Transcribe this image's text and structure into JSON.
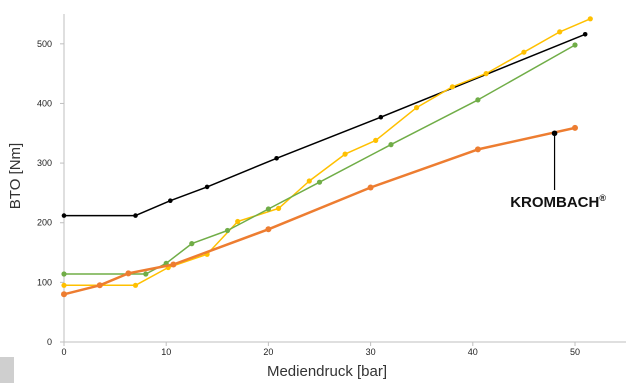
{
  "chart_data": {
    "type": "line",
    "title": "",
    "xlabel": "Mediendruck [bar]",
    "ylabel": "BTO [Nm]",
    "xlim": [
      0,
      55
    ],
    "ylim": [
      0,
      550
    ],
    "x_ticks": [
      "0",
      "10",
      "20",
      "30",
      "40",
      "50"
    ],
    "y_ticks": [
      "0",
      "100",
      "200",
      "300",
      "400",
      "500"
    ],
    "grid": false,
    "legend": "none",
    "annotations": [
      {
        "text": "KROMBACH",
        "superscript": "®",
        "target_series": 3,
        "x": 48,
        "y": 350
      }
    ],
    "series": [
      {
        "color": "#000000",
        "points": [
          [
            0,
            212
          ],
          [
            7,
            212
          ],
          [
            10.4,
            237
          ],
          [
            14,
            260
          ],
          [
            20.8,
            308
          ],
          [
            31,
            377
          ],
          [
            51,
            516
          ]
        ]
      },
      {
        "color": "#FFC000",
        "points": [
          [
            0,
            95
          ],
          [
            7,
            95
          ],
          [
            10.2,
            125
          ],
          [
            14,
            147
          ],
          [
            17,
            202
          ],
          [
            21,
            224
          ],
          [
            24,
            270
          ],
          [
            27.5,
            315
          ],
          [
            30.5,
            338
          ],
          [
            34.5,
            393
          ],
          [
            38,
            428
          ],
          [
            41.3,
            450
          ],
          [
            45,
            486
          ],
          [
            48.5,
            520
          ],
          [
            51.5,
            542
          ]
        ]
      },
      {
        "color": "#70AD47",
        "points": [
          [
            0,
            114
          ],
          [
            8,
            114
          ],
          [
            10,
            132
          ],
          [
            12.5,
            165
          ],
          [
            16,
            187
          ],
          [
            20,
            223
          ],
          [
            25,
            268
          ],
          [
            32,
            331
          ],
          [
            40.5,
            406
          ],
          [
            50,
            498
          ]
        ]
      },
      {
        "color": "#ED7D31",
        "points": [
          [
            0,
            80
          ],
          [
            3.5,
            95
          ],
          [
            6.3,
            115
          ],
          [
            10.7,
            130
          ],
          [
            20,
            189
          ],
          [
            30,
            259
          ],
          [
            40.5,
            323
          ],
          [
            50,
            359
          ]
        ]
      }
    ]
  }
}
